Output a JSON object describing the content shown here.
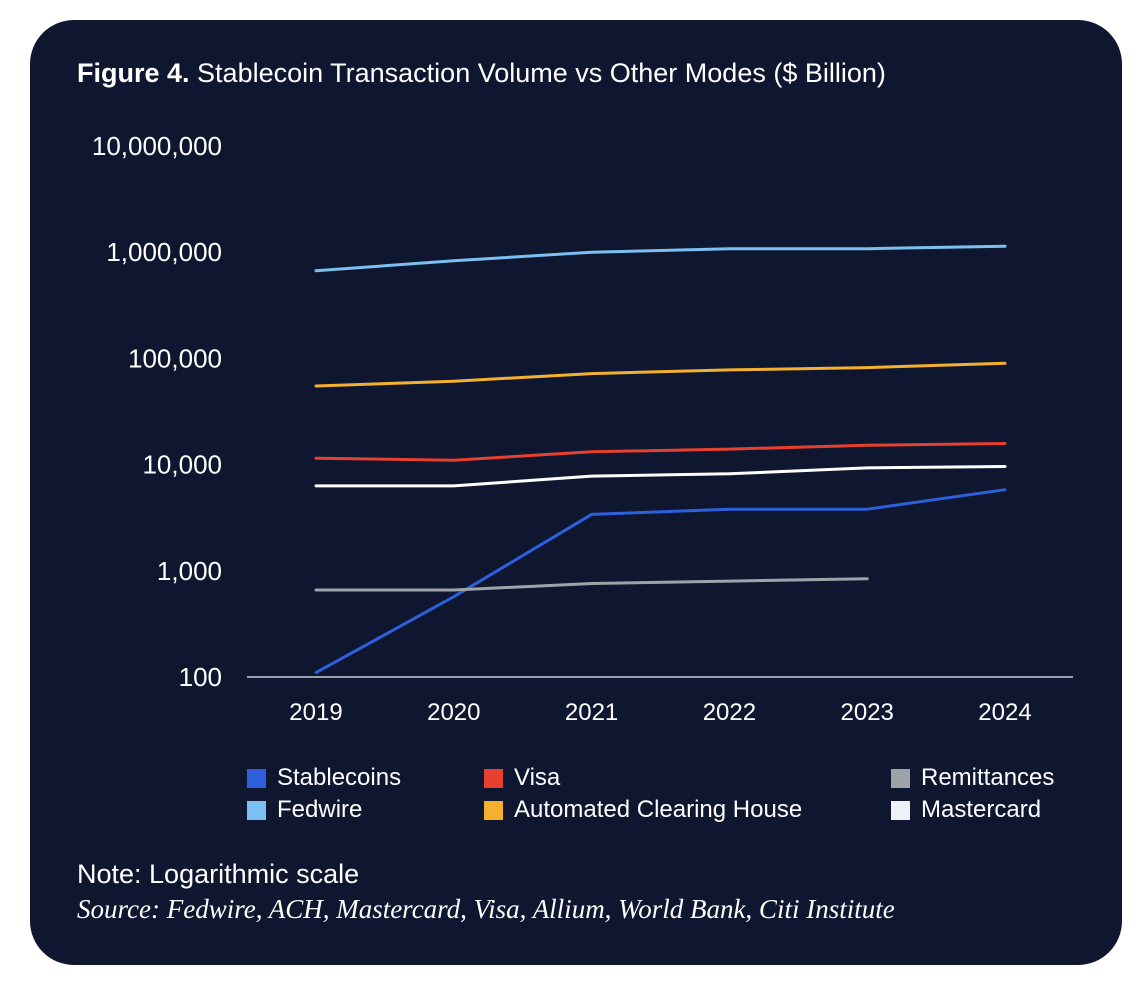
{
  "figure": {
    "label": "Figure 4.",
    "title": "Stablecoin Transaction Volume vs Other Modes ($ Billion)"
  },
  "chart_data": {
    "type": "line",
    "scale": "log",
    "title": "Stablecoin Transaction Volume vs Other Modes ($ Billion)",
    "xlabel": "",
    "ylabel": "",
    "ylim": [
      100,
      10000000
    ],
    "y_ticks": [
      100,
      1000,
      10000,
      100000,
      1000000,
      10000000
    ],
    "y_tick_labels": [
      "100",
      "1,000",
      "10,000",
      "100,000",
      "1,000,000",
      "10,000,000"
    ],
    "categories": [
      "2019",
      "2020",
      "2021",
      "2022",
      "2023",
      "2024"
    ],
    "series": [
      {
        "name": "Stablecoins",
        "color": "#2e5fdc",
        "values": [
          110,
          570,
          3400,
          3800,
          3800,
          5800
        ]
      },
      {
        "name": "Fedwire",
        "color": "#7cc0f2",
        "values": [
          670000,
          830000,
          1000000,
          1080000,
          1080000,
          1140000
        ]
      },
      {
        "name": "Visa",
        "color": "#e8402e",
        "values": [
          11500,
          11000,
          13200,
          14000,
          15200,
          15800
        ]
      },
      {
        "name": "Automated Clearing House",
        "color": "#f4b02e",
        "values": [
          55000,
          61000,
          72000,
          78000,
          82000,
          90000
        ]
      },
      {
        "name": "Remittances",
        "color": "#9ea3a8",
        "values": [
          660,
          660,
          760,
          800,
          840,
          null
        ]
      },
      {
        "name": "Mastercard",
        "color": "#ffffff",
        "values": [
          6300,
          6300,
          7800,
          8200,
          9300,
          9600
        ]
      }
    ]
  },
  "legend": [
    {
      "label": "Stablecoins",
      "color": "#2e5fdc"
    },
    {
      "label": "Visa",
      "color": "#e8402e"
    },
    {
      "label": "Remittances",
      "color": "#9ea3a8"
    },
    {
      "label": "Fedwire",
      "color": "#7cc0f2"
    },
    {
      "label": "Automated Clearing House",
      "color": "#f4b02e"
    },
    {
      "label": "Mastercard",
      "color": "#eef1f5"
    }
  ],
  "note": "Note: Logarithmic scale",
  "source": "Source: Fedwire, ACH, Mastercard, Visa, Allium, World Bank, Citi Institute"
}
